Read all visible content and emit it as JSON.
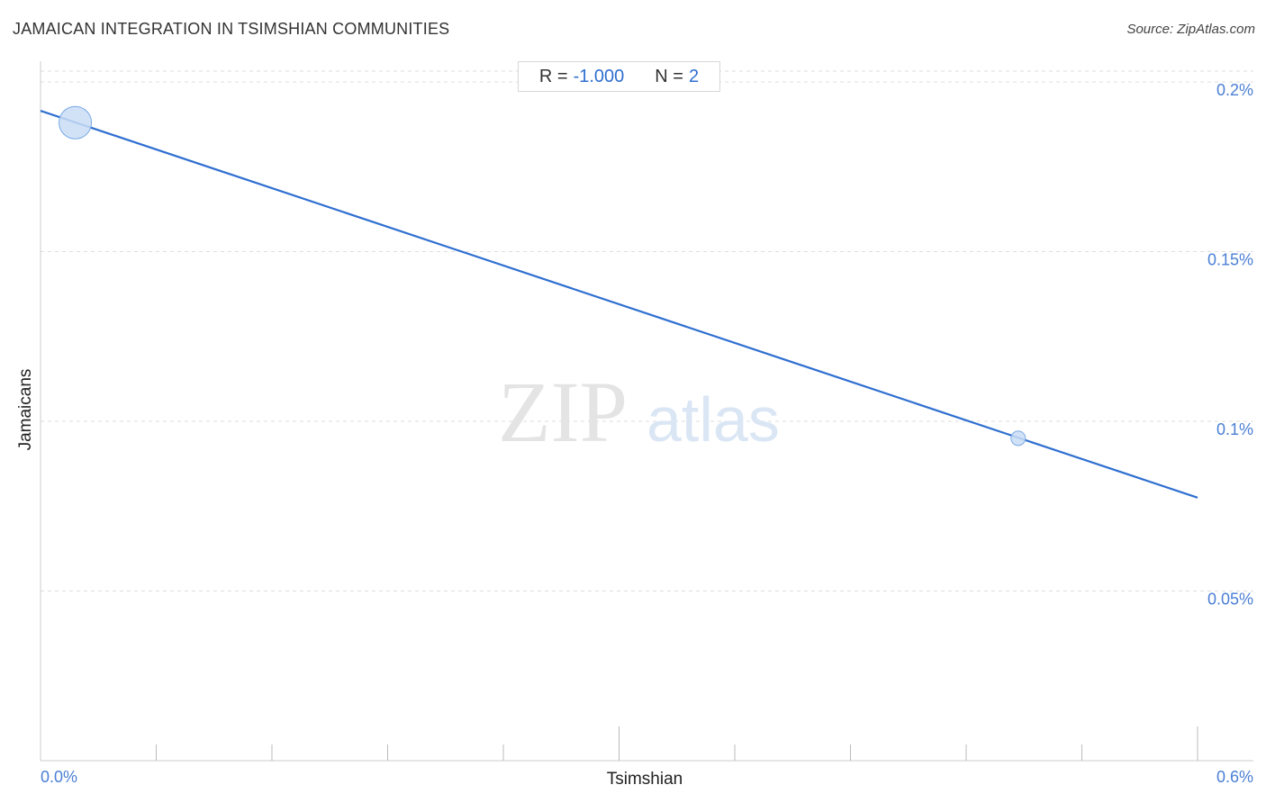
{
  "title": "JAMAICAN INTEGRATION IN TSIMSHIAN COMMUNITIES",
  "source": "Source: ZipAtlas.com",
  "watermark": {
    "zip": "ZIP",
    "atlas": "atlas"
  },
  "stats": {
    "r_label": "R =",
    "r_value": "-1.000",
    "n_label": "N =",
    "n_value": "2"
  },
  "colors": {
    "line": "#2f6fd0",
    "point_fill": "#c9ddf5",
    "point_stroke": "#7aa8e6",
    "grid": "#dddddd",
    "tick_text": "#4a7fd4"
  },
  "chart_data": {
    "type": "scatter",
    "xlabel": "Tsimshian",
    "ylabel": "Jamaicans",
    "xlim": [
      0,
      0.6
    ],
    "ylim": [
      0,
      0.2
    ],
    "x_tick_labels": [
      {
        "value": 0.0,
        "label": "0.0%"
      },
      {
        "value": 0.6,
        "label": "0.6%"
      }
    ],
    "y_tick_labels": [
      {
        "value": 0.2,
        "label": "0.2%"
      },
      {
        "value": 0.15,
        "label": "0.15%"
      },
      {
        "value": 0.1,
        "label": "0.1%"
      },
      {
        "value": 0.05,
        "label": "0.05%"
      }
    ],
    "points": [
      {
        "x": 0.018,
        "y": 0.188,
        "weight": "large"
      },
      {
        "x": 0.507,
        "y": 0.095,
        "weight": "small"
      }
    ],
    "trendline": {
      "x": [
        0.0,
        0.6
      ],
      "y": [
        0.1915,
        0.0775
      ]
    },
    "grid": true
  }
}
